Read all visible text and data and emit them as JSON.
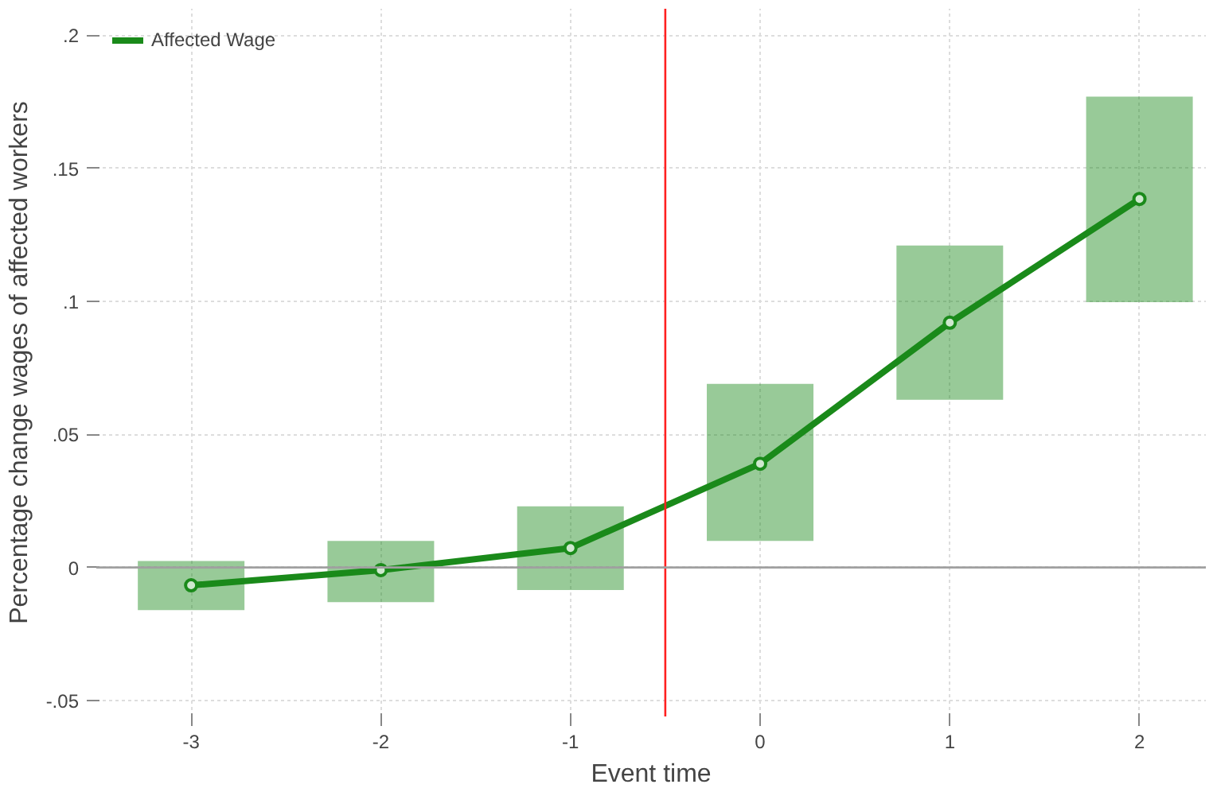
{
  "chart_data": {
    "type": "line",
    "xlabel": "Event time",
    "ylabel": "Percentage change wages of affected workers",
    "x": [
      -3,
      -2,
      -1,
      0,
      1,
      2
    ],
    "series": [
      {
        "name": "Affected Wage",
        "color": "#1a8a1a",
        "values": [
          -0.0067,
          -0.001,
          0.0073,
          0.039,
          0.092,
          0.1385
        ],
        "errors": [
          [
            -0.016,
            0.0024
          ],
          [
            -0.013,
            0.01
          ],
          [
            -0.0085,
            0.023
          ],
          [
            0.01,
            0.069
          ],
          [
            0.063,
            0.121
          ],
          [
            0.0997,
            0.177
          ]
        ]
      }
    ],
    "xlim": [
      -3.5,
      2.35
    ],
    "ylim": [
      -0.056,
      0.21
    ],
    "xticks": [
      -3,
      -2,
      -1,
      0,
      1,
      2
    ],
    "yticks": [
      {
        "value": -0.05,
        "label": "-.05"
      },
      {
        "value": 0,
        "label": "0"
      },
      {
        "value": 0.05,
        "label": ".05"
      },
      {
        "value": 0.1,
        "label": ".1"
      },
      {
        "value": 0.15,
        "label": ".15"
      },
      {
        "value": 0.2,
        "label": ".2"
      }
    ],
    "ref_lines": [
      {
        "axis": "x",
        "value": -0.5,
        "color": "#ff2020"
      },
      {
        "axis": "y",
        "value": 0,
        "color": "#a0a0a0"
      }
    ],
    "grid": true,
    "legend": "top left",
    "marker": "circle",
    "line_style": "solid"
  }
}
